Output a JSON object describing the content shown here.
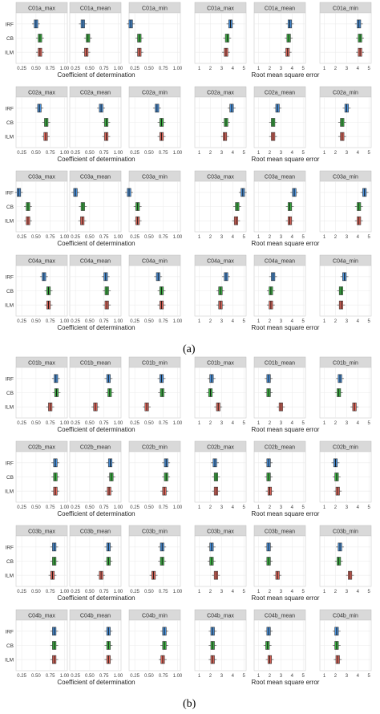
{
  "figure": {
    "panel_labels": [
      "(a)",
      "(b)"
    ],
    "x_axis_titles": {
      "r2": "Coefficient of determination",
      "rmse": "Root mean square error"
    },
    "rows_categories": [
      "IRF",
      "CB",
      "ILM"
    ],
    "category_colors": {
      "IRF": "#4a90d9",
      "CB": "#3cb043",
      "ILM": "#e0685c"
    },
    "r2_ticks": [
      0.25,
      0.5,
      0.75,
      1.0
    ],
    "r2_tick_labels": [
      "0.25",
      "0.50",
      "0.75",
      "1.00"
    ],
    "rmse_ticks": [
      1,
      2,
      3,
      4,
      5
    ],
    "rmse_tick_labels": [
      "1",
      "2",
      "3",
      "4",
      "5"
    ]
  },
  "chart_data": [
    {
      "type": "box",
      "panel": "(a)",
      "groups": [
        {
          "name": "C01a",
          "strips_r2": [
            "C01a_max",
            "C01a_mean",
            "C01a_min"
          ],
          "strips_rmse": [
            "C01a_max",
            "C01a_mean",
            "C01a_min"
          ],
          "r2": [
            {
              "IRF": 0.5,
              "CB": 0.57,
              "ILM": 0.57
            },
            {
              "IRF": 0.38,
              "CB": 0.47,
              "ILM": 0.44
            },
            {
              "IRF": 0.18,
              "CB": 0.33,
              "ILM": 0.33
            }
          ],
          "rmse": [
            {
              "IRF": 3.8,
              "CB": 3.5,
              "ILM": 3.4
            },
            {
              "IRF": 3.8,
              "CB": 3.7,
              "ILM": 3.6
            },
            {
              "IRF": 4.1,
              "CB": 4.2,
              "ILM": 4.2
            }
          ]
        },
        {
          "name": "C02a",
          "strips_r2": [
            "C02a_max",
            "C02a_mean",
            "C02a_min"
          ],
          "strips_rmse": [
            "C02a_max",
            "C02a_mean",
            "C02a_min"
          ],
          "r2": [
            {
              "IRF": 0.56,
              "CB": 0.68,
              "ILM": 0.67
            },
            {
              "IRF": 0.7,
              "CB": 0.79,
              "ILM": 0.79
            },
            {
              "IRF": 0.64,
              "CB": 0.72,
              "ILM": 0.72
            }
          ],
          "rmse": [
            {
              "IRF": 3.9,
              "CB": 3.4,
              "ILM": 3.3
            },
            {
              "IRF": 2.7,
              "CB": 2.3,
              "ILM": 2.3
            },
            {
              "IRF": 3.0,
              "CB": 2.6,
              "ILM": 2.6
            }
          ]
        },
        {
          "name": "C03a",
          "strips_r2": [
            "C03a_max",
            "C03a_mean",
            "C03a_min"
          ],
          "strips_rmse": [
            "C03a_max",
            "C03a_mean",
            "C03a_min"
          ],
          "r2": [
            {
              "IRF": 0.2,
              "CB": 0.36,
              "ILM": 0.36
            },
            {
              "IRF": 0.25,
              "CB": 0.38,
              "ILM": 0.37
            },
            {
              "IRF": 0.15,
              "CB": 0.3,
              "ILM": 0.3
            }
          ],
          "rmse": [
            {
              "IRF": 4.9,
              "CB": 4.4,
              "ILM": 4.3
            },
            {
              "IRF": 4.2,
              "CB": 3.8,
              "ILM": 3.8
            },
            {
              "IRF": 4.6,
              "CB": 4.1,
              "ILM": 4.1
            }
          ]
        },
        {
          "name": "C04a",
          "strips_r2": [
            "C04a_max",
            "C04a_mean",
            "C04a_min"
          ],
          "strips_rmse": [
            "C04a_max",
            "C04a_mean",
            "C04a_min"
          ],
          "r2": [
            {
              "IRF": 0.64,
              "CB": 0.72,
              "ILM": 0.72
            },
            {
              "IRF": 0.78,
              "CB": 0.8,
              "ILM": 0.8
            },
            {
              "IRF": 0.66,
              "CB": 0.72,
              "ILM": 0.72
            }
          ],
          "rmse": [
            {
              "IRF": 3.4,
              "CB": 2.9,
              "ILM": 2.9
            },
            {
              "IRF": 2.3,
              "CB": 2.1,
              "ILM": 2.1
            },
            {
              "IRF": 2.8,
              "CB": 2.5,
              "ILM": 2.5
            }
          ]
        }
      ]
    },
    {
      "type": "box",
      "panel": "(b)",
      "groups": [
        {
          "name": "C01b",
          "strips_r2": [
            "C01b_max",
            "C01b_mean",
            "C01b_min"
          ],
          "strips_rmse": [
            "C01b_max",
            "C01b_mean",
            "C01b_min"
          ],
          "r2": [
            {
              "IRF": 0.85,
              "CB": 0.86,
              "ILM": 0.75
            },
            {
              "IRF": 0.83,
              "CB": 0.85,
              "ILM": 0.6
            },
            {
              "IRF": 0.72,
              "CB": 0.73,
              "ILM": 0.46
            }
          ],
          "rmse": [
            {
              "IRF": 2.1,
              "CB": 2.0,
              "ILM": 2.7
            },
            {
              "IRF": 1.9,
              "CB": 1.9,
              "ILM": 3.0
            },
            {
              "IRF": 2.4,
              "CB": 2.3,
              "ILM": 3.7
            }
          ]
        },
        {
          "name": "C02b",
          "strips_r2": [
            "C02b_max",
            "C02b_mean",
            "C02b_min"
          ],
          "strips_rmse": [
            "C02b_max",
            "C02b_mean",
            "C02b_min"
          ],
          "r2": [
            {
              "IRF": 0.84,
              "CB": 0.84,
              "ILM": 0.84
            },
            {
              "IRF": 0.86,
              "CB": 0.88,
              "ILM": 0.84
            },
            {
              "IRF": 0.8,
              "CB": 0.8,
              "ILM": 0.77
            }
          ],
          "rmse": [
            {
              "IRF": 2.4,
              "CB": 2.5,
              "ILM": 2.5
            },
            {
              "IRF": 1.9,
              "CB": 1.9,
              "ILM": 2.0
            },
            {
              "IRF": 2.0,
              "CB": 2.1,
              "ILM": 2.2
            }
          ]
        },
        {
          "name": "C03b",
          "strips_r2": [
            "C03b_max",
            "C03b_mean",
            "C03b_min"
          ],
          "strips_rmse": [
            "C03b_max",
            "C03b_mean",
            "C03b_min"
          ],
          "r2": [
            {
              "IRF": 0.82,
              "CB": 0.82,
              "ILM": 0.79
            },
            {
              "IRF": 0.83,
              "CB": 0.83,
              "ILM": 0.7
            },
            {
              "IRF": 0.73,
              "CB": 0.73,
              "ILM": 0.58
            }
          ],
          "rmse": [
            {
              "IRF": 2.1,
              "CB": 2.1,
              "ILM": 2.5
            },
            {
              "IRF": 1.9,
              "CB": 1.9,
              "ILM": 2.7
            },
            {
              "IRF": 2.4,
              "CB": 2.3,
              "ILM": 3.3
            }
          ]
        },
        {
          "name": "C04b",
          "strips_r2": [
            "C04b_max",
            "C04b_mean",
            "C04b_min"
          ],
          "strips_rmse": [
            "C04b_max",
            "C04b_mean",
            "C04b_min"
          ],
          "r2": [
            {
              "IRF": 0.82,
              "CB": 0.82,
              "ILM": 0.82
            },
            {
              "IRF": 0.83,
              "CB": 0.83,
              "ILM": 0.83
            },
            {
              "IRF": 0.77,
              "CB": 0.77,
              "ILM": 0.74
            }
          ],
          "rmse": [
            {
              "IRF": 2.2,
              "CB": 2.2,
              "ILM": 2.2
            },
            {
              "IRF": 1.9,
              "CB": 1.8,
              "ILM": 2.0
            },
            {
              "IRF": 2.1,
              "CB": 2.1,
              "ILM": 2.2
            }
          ]
        }
      ]
    }
  ]
}
